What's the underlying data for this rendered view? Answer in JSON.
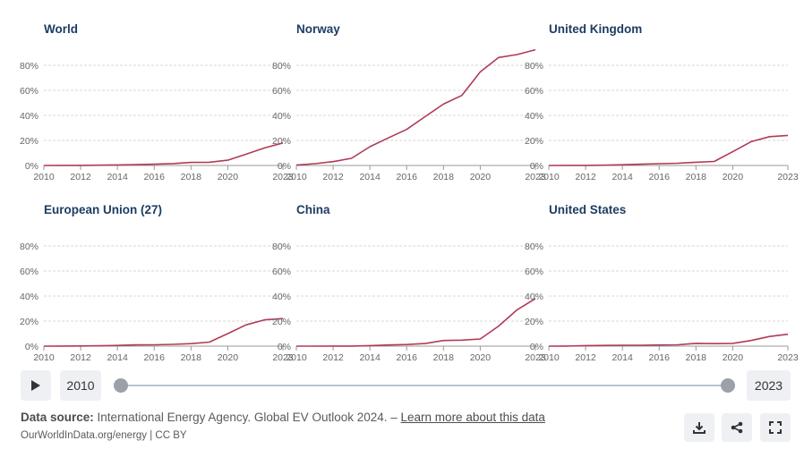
{
  "chart_data": [
    {
      "type": "line",
      "title": "World",
      "x": [
        2010,
        2011,
        2012,
        2013,
        2014,
        2015,
        2016,
        2017,
        2018,
        2019,
        2020,
        2021,
        2022,
        2023
      ],
      "values": [
        0.01,
        0.05,
        0.1,
        0.2,
        0.4,
        0.7,
        1.0,
        1.5,
        2.4,
        2.6,
        4.2,
        9.0,
        14.0,
        18.0
      ],
      "ylim": [
        0,
        80
      ],
      "yticks": [
        0,
        20,
        40,
        60,
        80
      ],
      "xticks": [
        2010,
        2012,
        2014,
        2016,
        2018,
        2020,
        2023
      ]
    },
    {
      "type": "line",
      "title": "Norway",
      "x": [
        2010,
        2011,
        2012,
        2013,
        2014,
        2015,
        2016,
        2017,
        2018,
        2019,
        2020,
        2021,
        2022,
        2023
      ],
      "values": [
        0.3,
        1.4,
        3.1,
        5.7,
        15.0,
        22.0,
        28.8,
        39.0,
        49.0,
        55.9,
        74.7,
        86.2,
        88.6,
        92.4
      ],
      "ylim": [
        0,
        80
      ],
      "yticks": [
        0,
        20,
        40,
        60,
        80
      ],
      "xticks": [
        2010,
        2012,
        2014,
        2016,
        2018,
        2020,
        2023
      ]
    },
    {
      "type": "line",
      "title": "United Kingdom",
      "x": [
        2010,
        2011,
        2012,
        2013,
        2014,
        2015,
        2016,
        2017,
        2018,
        2019,
        2020,
        2021,
        2022,
        2023
      ],
      "values": [
        0.0,
        0.05,
        0.1,
        0.2,
        0.6,
        1.0,
        1.4,
        1.8,
        2.6,
        3.2,
        11.0,
        19.0,
        23.0,
        24.0
      ],
      "ylim": [
        0,
        80
      ],
      "yticks": [
        0,
        20,
        40,
        60,
        80
      ],
      "xticks": [
        2010,
        2012,
        2014,
        2016,
        2018,
        2020,
        2023
      ]
    },
    {
      "type": "line",
      "title": "European Union (27)",
      "x": [
        2010,
        2011,
        2012,
        2013,
        2014,
        2015,
        2016,
        2017,
        2018,
        2019,
        2020,
        2021,
        2022,
        2023
      ],
      "values": [
        0.0,
        0.05,
        0.15,
        0.3,
        0.6,
        1.0,
        1.1,
        1.4,
        2.0,
        3.2,
        10.0,
        17.0,
        21.0,
        22.0
      ],
      "ylim": [
        0,
        80
      ],
      "yticks": [
        0,
        20,
        40,
        60,
        80
      ],
      "xticks": [
        2010,
        2012,
        2014,
        2016,
        2018,
        2020,
        2023
      ]
    },
    {
      "type": "line",
      "title": "China",
      "x": [
        2010,
        2011,
        2012,
        2013,
        2014,
        2015,
        2016,
        2017,
        2018,
        2019,
        2020,
        2021,
        2022,
        2023
      ],
      "values": [
        0.0,
        0.0,
        0.05,
        0.1,
        0.4,
        0.9,
        1.3,
        2.1,
        4.5,
        4.8,
        5.7,
        16.0,
        29.0,
        38.0
      ],
      "ylim": [
        0,
        80
      ],
      "yticks": [
        0,
        20,
        40,
        60,
        80
      ],
      "xticks": [
        2010,
        2012,
        2014,
        2016,
        2018,
        2020,
        2023
      ]
    },
    {
      "type": "line",
      "title": "United States",
      "x": [
        2010,
        2011,
        2012,
        2013,
        2014,
        2015,
        2016,
        2017,
        2018,
        2019,
        2020,
        2021,
        2022,
        2023
      ],
      "values": [
        0.0,
        0.1,
        0.4,
        0.6,
        0.7,
        0.7,
        0.9,
        1.1,
        2.2,
        2.0,
        2.2,
        4.5,
        7.7,
        9.5
      ],
      "ylim": [
        0,
        80
      ],
      "yticks": [
        0,
        20,
        40,
        60,
        80
      ],
      "xticks": [
        2010,
        2012,
        2014,
        2016,
        2018,
        2020,
        2023
      ]
    }
  ],
  "y_tick_labels": [
    "0%",
    "20%",
    "40%",
    "60%",
    "80%"
  ],
  "x_tick_labels": [
    "2010",
    "2012",
    "2014",
    "2016",
    "2018",
    "2020",
    "2023"
  ],
  "colors": {
    "line": "#b13a55",
    "title": "#1d3d63",
    "grid": "#d7d7d7",
    "axis": "#999999",
    "tick_text": "#666666"
  },
  "timeline": {
    "start_year": "2010",
    "end_year": "2023",
    "play_icon": "play-icon"
  },
  "source": {
    "label": "Data source:",
    "text": "International Energy Agency. Global EV Outlook 2024. –",
    "link": "Learn more about this data",
    "credit": "OurWorldInData.org/energy | CC BY"
  },
  "actions": {
    "download_icon": "download-icon",
    "share_icon": "share-icon",
    "fullscreen_icon": "fullscreen-icon"
  }
}
